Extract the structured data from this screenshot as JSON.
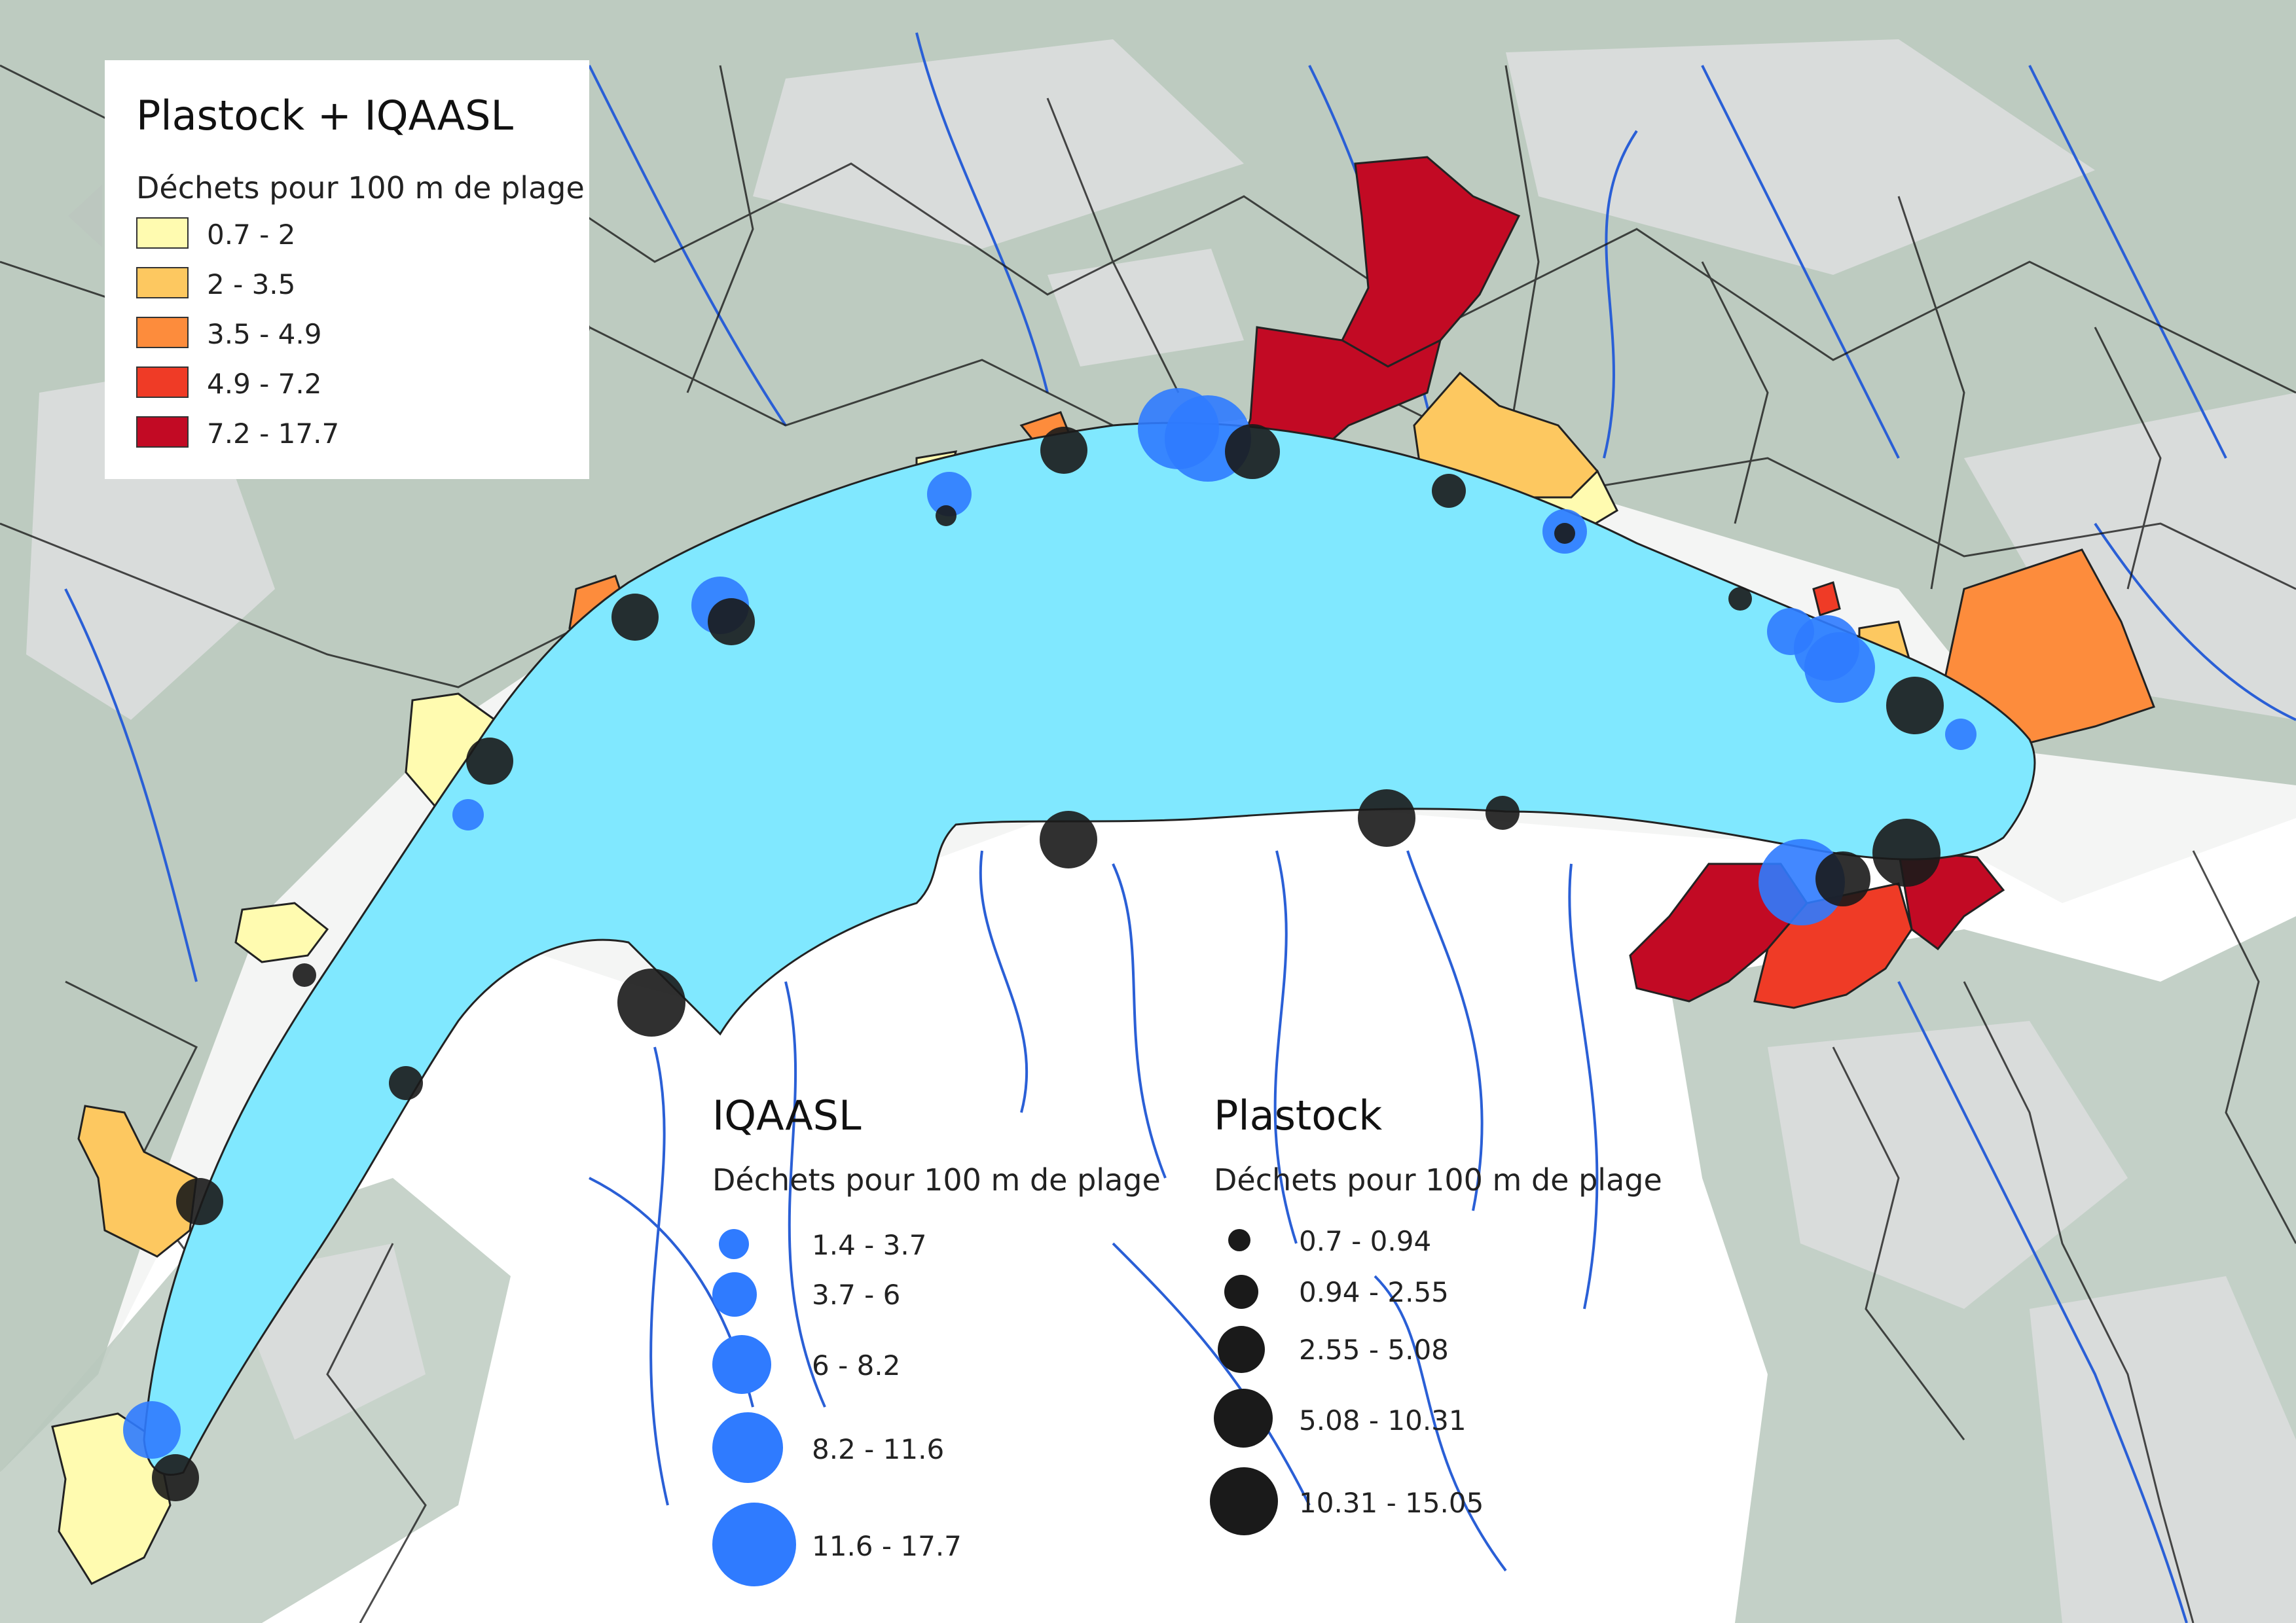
{
  "colors": {
    "lake": "#80e8ff",
    "land_green": "#b9c8bd",
    "land_grey": "#d4d7d6",
    "river": "#2a5fd6",
    "road": "#111111",
    "iqaasl_circle": "#2f7bff",
    "plastock_circle": "#1a1a1a"
  },
  "choropleth_legend": {
    "title": "Plastock + IQAASL",
    "subtitle": "Déchets pour 100 m de plage",
    "classes": [
      {
        "label": "0.7 - 2",
        "color": "#fffbb0"
      },
      {
        "label": "2 - 3.5",
        "color": "#fdc860"
      },
      {
        "label": "3.5 - 4.9",
        "color": "#fd8c3c"
      },
      {
        "label": "4.9 - 7.2",
        "color": "#ef3b26"
      },
      {
        "label": "7.2 - 17.7",
        "color": "#c20a24"
      }
    ]
  },
  "iqaasl_legend": {
    "title": "IQAASL",
    "subtitle": "Déchets pour 100 m de plage",
    "classes": [
      {
        "label": "1.4 - 3.7"
      },
      {
        "label": "3.7 - 6"
      },
      {
        "label": "6 - 8.2"
      },
      {
        "label": "8.2 - 11.6"
      },
      {
        "label": "11.6 - 17.7"
      }
    ]
  },
  "plastock_legend": {
    "title": "Plastock",
    "subtitle": "Déchets pour 100 m de plage",
    "classes": [
      {
        "label": "0.7 - 0.94"
      },
      {
        "label": "0.94 - 2.55"
      },
      {
        "label": "2.55 - 5.08"
      },
      {
        "label": "5.08 - 10.31"
      },
      {
        "label": "10.31 - 15.05"
      }
    ]
  }
}
